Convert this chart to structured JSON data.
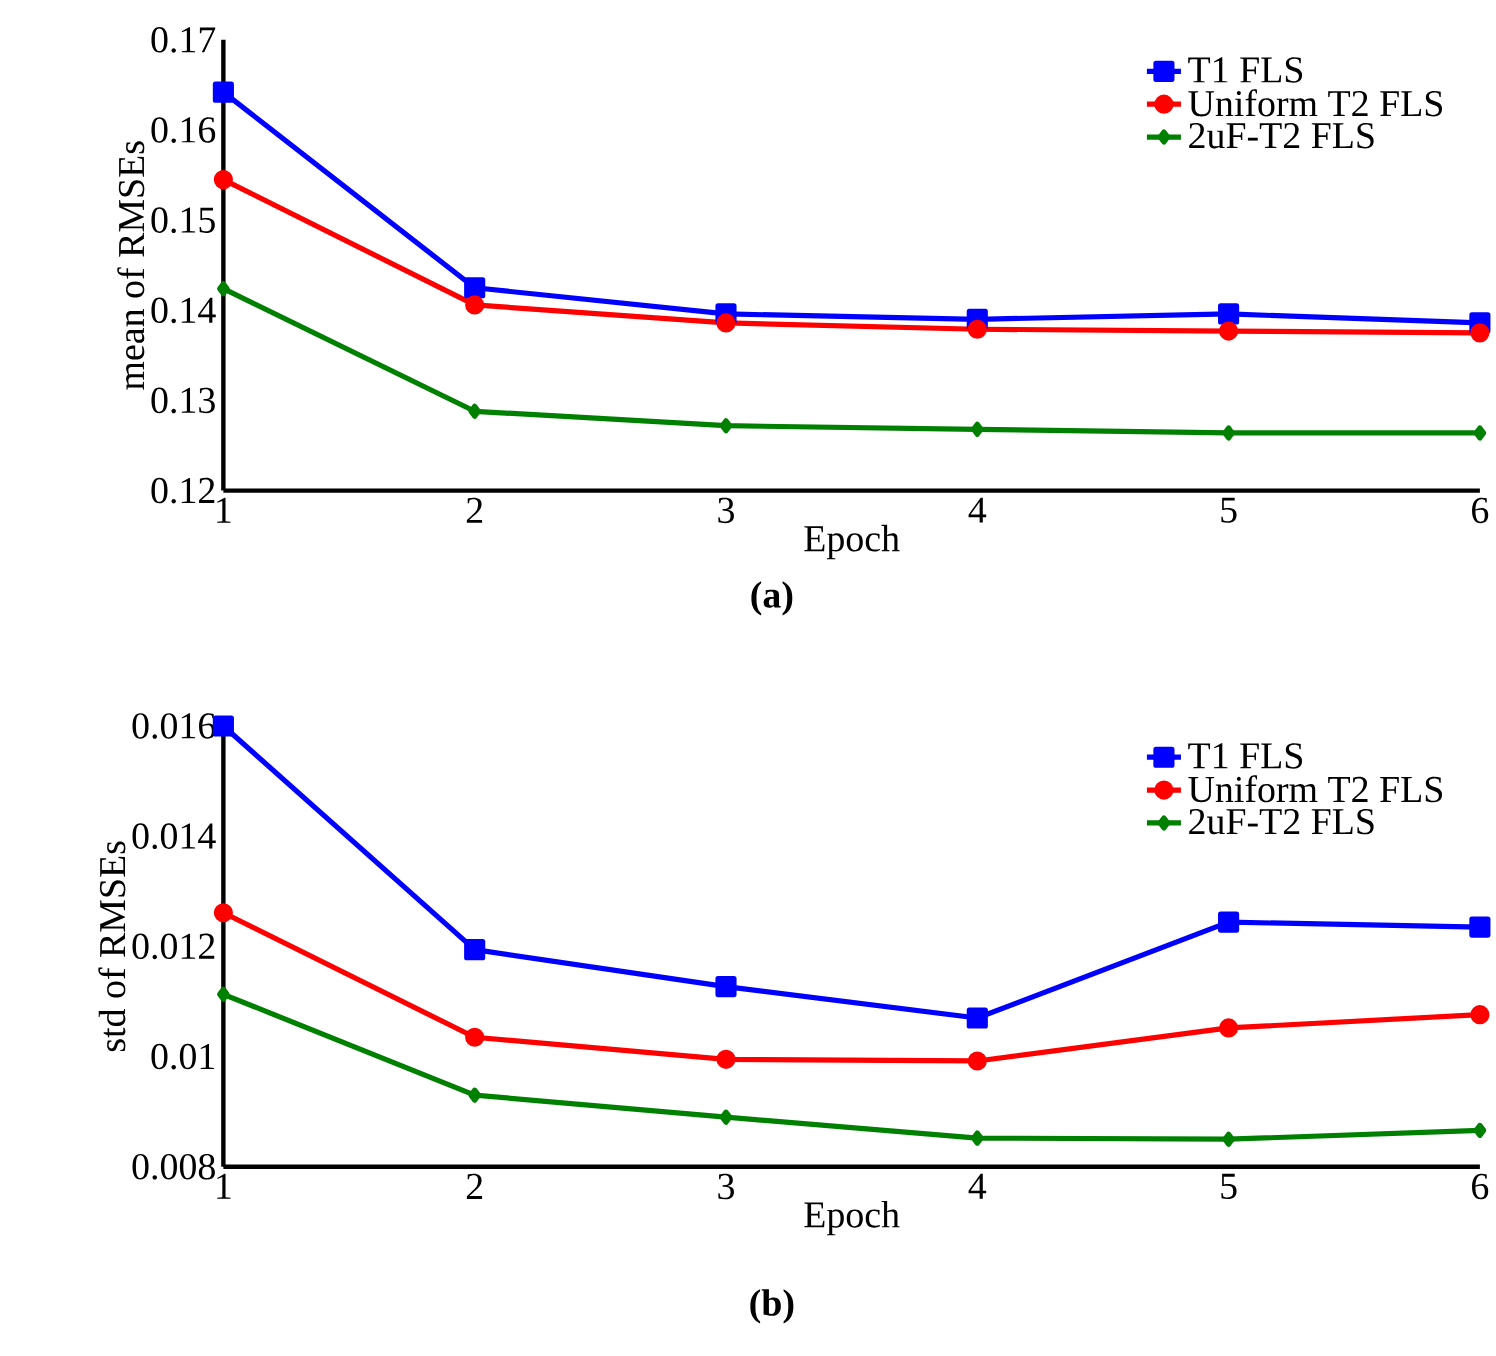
{
  "chart_data": [
    {
      "type": "line",
      "xlabel": "Epoch",
      "ylabel": "mean of RMSEs",
      "annotations": [
        "(a)"
      ],
      "x": [
        1,
        2,
        3,
        4,
        5,
        6
      ],
      "xlim": [
        1,
        6
      ],
      "xticks": [
        1,
        2,
        3,
        4,
        5,
        6
      ],
      "ylim": [
        0.12,
        0.17
      ],
      "yticks": [
        0.12,
        0.13,
        0.14,
        0.15,
        0.16,
        0.17
      ],
      "legend": "top right",
      "line_style": "solid",
      "series": [
        {
          "name": "T1 FLS",
          "color": "#0000ff",
          "marker": "square",
          "values": [
            0.1642,
            0.1425,
            0.1396,
            0.139,
            0.1396,
            0.1386
          ]
        },
        {
          "name": "Uniform T2 FLS",
          "color": "#ff0000",
          "marker": "circle",
          "values": [
            0.1545,
            0.1406,
            0.1386,
            0.1379,
            0.1377,
            0.1375
          ]
        },
        {
          "name": "2uF-T2 FLS",
          "color": "#008000",
          "marker": "diamond",
          "values": [
            0.1424,
            0.1288,
            0.1272,
            0.1268,
            0.1264,
            0.1264
          ]
        }
      ]
    },
    {
      "type": "line",
      "xlabel": "Epoch",
      "ylabel": "std of RMSEs",
      "annotations": [
        "(b)"
      ],
      "x": [
        1,
        2,
        3,
        4,
        5,
        6
      ],
      "xlim": [
        1,
        6
      ],
      "xticks": [
        1,
        2,
        3,
        4,
        5,
        6
      ],
      "ylim": [
        0.008,
        0.016
      ],
      "yticks": [
        0.008,
        0.01,
        0.012,
        0.014,
        0.016
      ],
      "legend": "top right",
      "line_style": "solid",
      "series": [
        {
          "name": "T1 FLS",
          "color": "#0000ff",
          "marker": "square",
          "values": [
            0.016,
            0.01194,
            0.01127,
            0.0107,
            0.01244,
            0.01235
          ]
        },
        {
          "name": "Uniform T2 FLS",
          "color": "#ff0000",
          "marker": "circle",
          "values": [
            0.01261,
            0.01035,
            0.00995,
            0.00992,
            0.01052,
            0.01076
          ]
        },
        {
          "name": "2uF-T2 FLS",
          "color": "#008000",
          "marker": "diamond",
          "values": [
            0.01113,
            0.0093,
            0.0089,
            0.00852,
            0.0085,
            0.00866
          ]
        }
      ]
    }
  ]
}
